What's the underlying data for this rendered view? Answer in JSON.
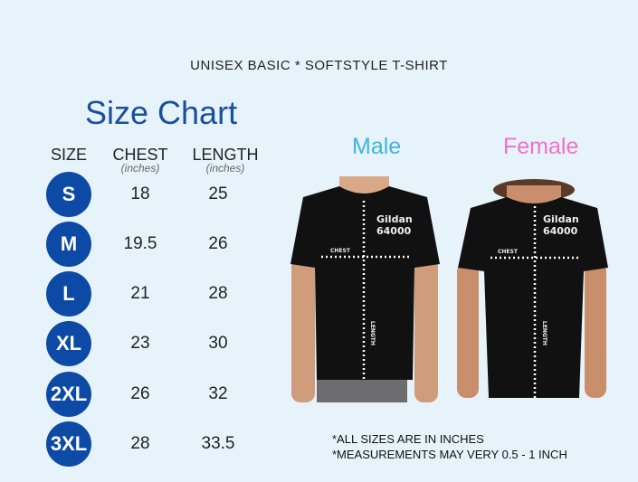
{
  "product_title": "UNISEX BASIC * SOFTSTYLE T-SHIRT",
  "chart_title": "Size Chart",
  "colors": {
    "background": "#e7f3fb",
    "size_circle": "#0c4aa6",
    "title": "#1a4f9e",
    "male": "#3fb4e0",
    "female": "#f070c8"
  },
  "chart_data": {
    "type": "table",
    "columns": [
      {
        "label": "SIZE",
        "unit": ""
      },
      {
        "label": "CHEST",
        "unit": "(inches)"
      },
      {
        "label": "LENGTH",
        "unit": "(inches)"
      }
    ],
    "rows": [
      {
        "size": "S",
        "chest": "18",
        "length": "25"
      },
      {
        "size": "M",
        "chest": "19.5",
        "length": "26"
      },
      {
        "size": "L",
        "chest": "21",
        "length": "28"
      },
      {
        "size": "XL",
        "chest": "23",
        "length": "30"
      },
      {
        "size": "2XL",
        "chest": "26",
        "length": "32"
      },
      {
        "size": "3XL",
        "chest": "28",
        "length": "33.5"
      }
    ]
  },
  "models": {
    "male": {
      "label": "Male",
      "shirt_brand": "Gildan",
      "shirt_model": "64000",
      "chest_label": "CHEST",
      "length_label": "LENGTH"
    },
    "female": {
      "label": "Female",
      "shirt_brand": "Gildan",
      "shirt_model": "64000",
      "chest_label": "CHEST",
      "length_label": "LENGTH"
    }
  },
  "notes": [
    "*ALL SIZES ARE IN INCHES",
    "*MEASUREMENTS MAY VERY 0.5 - 1 INCH"
  ]
}
